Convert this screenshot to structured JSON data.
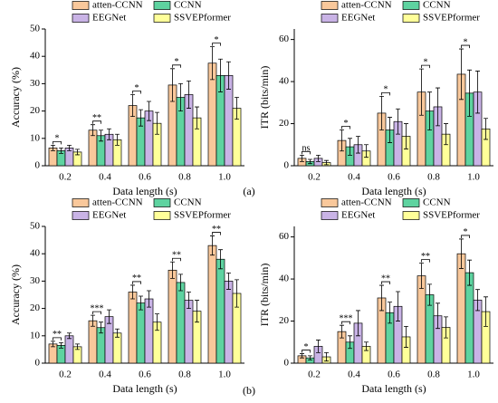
{
  "panel_labels": [
    "(a)",
    "(b)"
  ],
  "chart_data": [
    {
      "type": "bar",
      "xlabel": "Data length (s)",
      "ylabel": "Accuracy (%)",
      "categories": [
        "0.2",
        "0.4",
        "0.6",
        "0.8",
        "1.0"
      ],
      "ylim": [
        0,
        50
      ],
      "yticks": [
        0,
        10,
        20,
        30,
        40,
        50
      ],
      "series": [
        {
          "name": "atten-CCNN",
          "color": "#f9c89b",
          "values": [
            6.5,
            13,
            22,
            29.5,
            37.5
          ],
          "errors": [
            1,
            2,
            4,
            6,
            6
          ]
        },
        {
          "name": "CCNN",
          "color": "#5ed3a0",
          "values": [
            5.5,
            11,
            17.5,
            25,
            33
          ],
          "errors": [
            1,
            2,
            3,
            5,
            6
          ]
        },
        {
          "name": "EEGNet",
          "color": "#c9b3e6",
          "values": [
            6.5,
            11.5,
            20,
            26,
            33
          ],
          "errors": [
            1,
            2,
            3.5,
            5,
            5
          ]
        },
        {
          "name": "SSVEPformer",
          "color": "#ffff99",
          "values": [
            5,
            9.5,
            15.5,
            17.5,
            21
          ],
          "errors": [
            1,
            2,
            4,
            4,
            4
          ]
        }
      ],
      "significance": [
        "*",
        "**",
        "*",
        "*",
        "*"
      ]
    },
    {
      "type": "bar",
      "xlabel": "Data length (s)",
      "ylabel": "ITR (bits/min)",
      "categories": [
        "0.2",
        "0.4",
        "0.6",
        "0.8",
        "1.0"
      ],
      "ylim": [
        0,
        65
      ],
      "yticks": [
        0,
        20,
        40,
        60
      ],
      "series": [
        {
          "name": "atten-CCNN",
          "color": "#f9c89b",
          "values": [
            3.5,
            12,
            25,
            35,
            43.5
          ],
          "errors": [
            1.5,
            5,
            8,
            11,
            12
          ]
        },
        {
          "name": "CCNN",
          "color": "#5ed3a0",
          "values": [
            2,
            9,
            17,
            26,
            34.5
          ],
          "errors": [
            1,
            4,
            6,
            9,
            11
          ]
        },
        {
          "name": "EEGNet",
          "color": "#c9b3e6",
          "values": [
            3.5,
            10,
            21,
            28,
            35
          ],
          "errors": [
            1.5,
            4,
            6,
            9,
            10
          ]
        },
        {
          "name": "SSVEPformer",
          "color": "#ffff99",
          "values": [
            1.5,
            7,
            14,
            15,
            17.5
          ],
          "errors": [
            1,
            3,
            6,
            5,
            5
          ]
        }
      ],
      "significance": [
        "ns",
        "*",
        "*",
        "*",
        "*"
      ]
    },
    {
      "type": "bar",
      "xlabel": "Data length (s)",
      "ylabel": "Accuracy (%)",
      "categories": [
        "0.2",
        "0.4",
        "0.6",
        "0.8",
        "1.0"
      ],
      "ylim": [
        0,
        50
      ],
      "yticks": [
        0,
        10,
        20,
        30,
        40,
        50
      ],
      "series": [
        {
          "name": "atten-CCNN",
          "color": "#f9c89b",
          "values": [
            7,
            15.5,
            26,
            34,
            43
          ],
          "errors": [
            1,
            2,
            2.5,
            3,
            3.5
          ]
        },
        {
          "name": "CCNN",
          "color": "#5ed3a0",
          "values": [
            6.5,
            13,
            22,
            29.5,
            38
          ],
          "errors": [
            1,
            2,
            2.5,
            3,
            3.5
          ]
        },
        {
          "name": "EEGNet",
          "color": "#c9b3e6",
          "values": [
            10,
            17,
            23.5,
            23,
            30
          ],
          "errors": [
            1,
            2.5,
            3,
            3,
            3
          ]
        },
        {
          "name": "SSVEPformer",
          "color": "#ffff99",
          "values": [
            6,
            11,
            15,
            19,
            25.5
          ],
          "errors": [
            1,
            1.5,
            3,
            4,
            5
          ]
        }
      ],
      "significance": [
        "**",
        "***",
        "**",
        "**",
        "**"
      ]
    },
    {
      "type": "bar",
      "xlabel": "Data length (s)",
      "ylabel": "ITR (bits/min)",
      "categories": [
        "0.2",
        "0.4",
        "0.6",
        "0.8",
        "1.0"
      ],
      "ylim": [
        0,
        65
      ],
      "yticks": [
        0,
        20,
        40,
        60
      ],
      "series": [
        {
          "name": "atten-CCNN",
          "color": "#f9c89b",
          "values": [
            3.5,
            15,
            31,
            41.5,
            52
          ],
          "errors": [
            1,
            3,
            6,
            6,
            7
          ]
        },
        {
          "name": "CCNN",
          "color": "#5ed3a0",
          "values": [
            2.5,
            10,
            24,
            32.5,
            43
          ],
          "errors": [
            1,
            3,
            5,
            5,
            6
          ]
        },
        {
          "name": "EEGNet",
          "color": "#c9b3e6",
          "values": [
            8,
            19,
            27,
            22.5,
            30
          ],
          "errors": [
            3,
            6,
            7,
            6,
            5
          ]
        },
        {
          "name": "SSVEPformer",
          "color": "#ffff99",
          "values": [
            3,
            8,
            12.5,
            17,
            24.5
          ],
          "errors": [
            2,
            2,
            5,
            5,
            7
          ]
        }
      ],
      "significance": [
        "*",
        "***",
        "**",
        "**",
        "*"
      ]
    }
  ]
}
